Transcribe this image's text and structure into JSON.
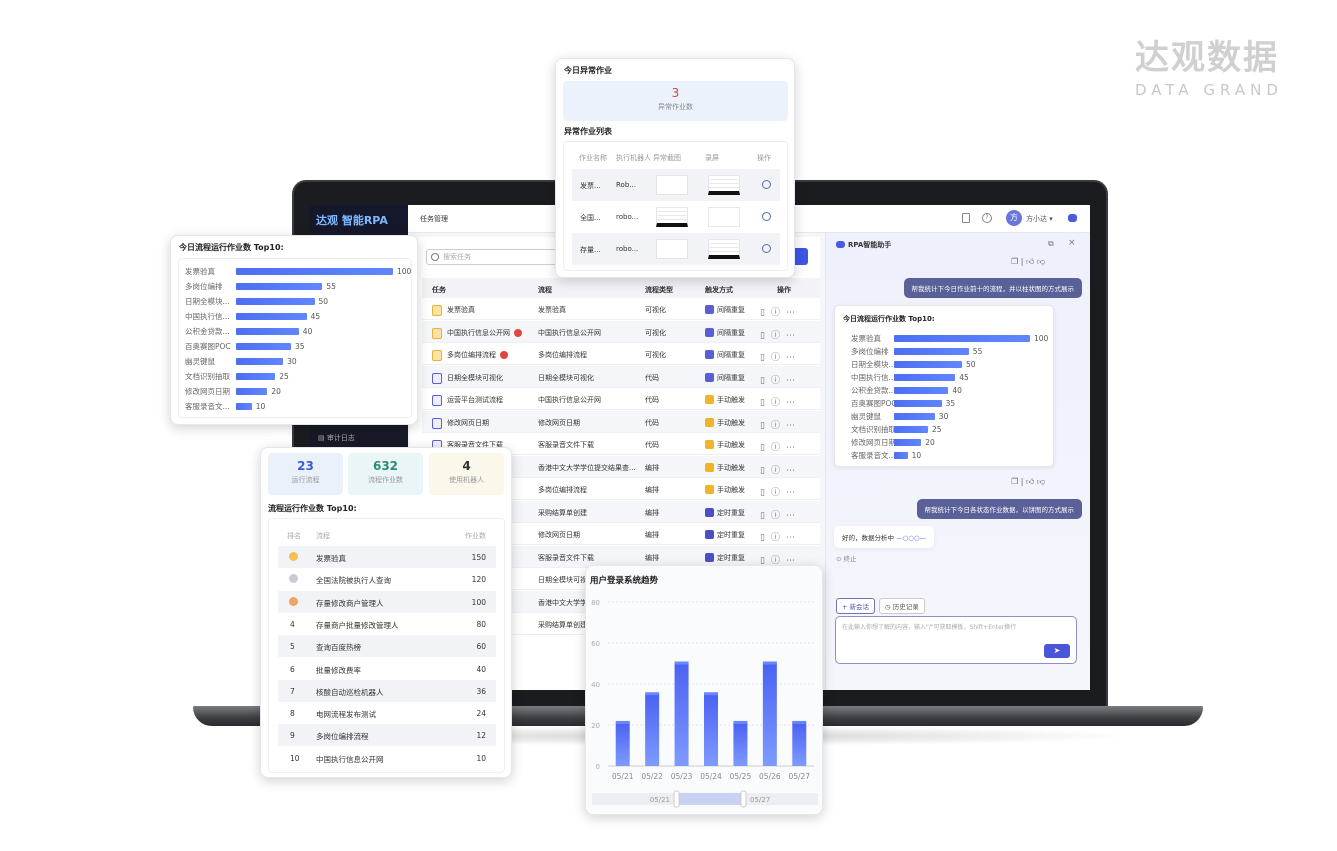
{
  "brand": {
    "cn": "达观数据",
    "en": "DATA GRAND"
  },
  "app": {
    "logo": "达观 智能RPA",
    "page_title": "任务管理",
    "user_avatar": "方",
    "user_name": "方小达 ▾",
    "sidebar_items": [
      {
        "label": "审计日志"
      }
    ]
  },
  "tasks": {
    "search_placeholder": "搜索任务",
    "columns": [
      "任务",
      "流程",
      "流程类型",
      "触发方式",
      "操作"
    ],
    "rows": [
      {
        "task": "发票验真",
        "flow": "发票验真",
        "type": "可视化",
        "trigger": "间隔重复",
        "icon": "visual",
        "badge": false
      },
      {
        "task": "中国执行信息公开网",
        "flow": "中国执行信息公开网",
        "type": "可视化",
        "trigger": "间隔重复",
        "icon": "visual",
        "badge": true
      },
      {
        "task": "多岗位编排流程",
        "flow": "多岗位编排流程",
        "type": "可视化",
        "trigger": "间隔重复",
        "icon": "visual",
        "badge": true
      },
      {
        "task": "日期全模块可视化",
        "flow": "日期全模块可视化",
        "type": "代码",
        "trigger": "间隔重复",
        "icon": "code",
        "badge": false
      },
      {
        "task": "运营平台测试流程",
        "flow": "中国执行信息公开网",
        "type": "代码",
        "trigger": "手动触发",
        "icon": "code",
        "badge": false
      },
      {
        "task": "修改网页日期",
        "flow": "修改网页日期",
        "type": "代码",
        "trigger": "手动触发",
        "icon": "code",
        "badge": false
      },
      {
        "task": "客服录音文件下载",
        "flow": "客服录音文件下载",
        "type": "代码",
        "trigger": "手动触发",
        "icon": "code",
        "badge": false
      },
      {
        "task": "",
        "flow": "香港中文大学学位提交结果查...",
        "type": "编排",
        "trigger": "手动触发"
      },
      {
        "task": "",
        "flow": "多岗位编排流程",
        "type": "编排",
        "trigger": "手动触发"
      },
      {
        "task": "",
        "flow": "采购结算单创建",
        "type": "编排",
        "trigger": "定时重复"
      },
      {
        "task": "",
        "flow": "修改网页日期",
        "type": "编排",
        "trigger": "定时重复"
      },
      {
        "task": "",
        "flow": "客服录音文件下载",
        "type": "编排",
        "trigger": "定时重复"
      },
      {
        "task": "",
        "flow": "日期全模块可视",
        "type": "",
        "trigger": ""
      },
      {
        "task": "",
        "flow": "香港中文大学学",
        "type": "",
        "trigger": ""
      },
      {
        "task": "",
        "flow": "采购结算单创建",
        "type": "",
        "trigger": ""
      }
    ],
    "trigger_colors": {
      "间隔重复": "#5b5fd6",
      "手动触发": "#f0b429",
      "定时重复": "#4b4fc4"
    }
  },
  "anomaly": {
    "title": "今日异常作业",
    "count": "3",
    "count_label": "异常作业数",
    "list_title": "异常作业列表",
    "columns": [
      "作业名称",
      "执行机器人",
      "异常截图",
      "录屏",
      "操作"
    ],
    "rows": [
      {
        "name": "发票...",
        "robot": "Rob..."
      },
      {
        "name": "全国...",
        "robot": "robo..."
      },
      {
        "name": "存量...",
        "robot": "robo..."
      }
    ]
  },
  "top10": {
    "title": "今日流程运行作业数 Top10:",
    "items": [
      {
        "label": "发票验真",
        "value": 100
      },
      {
        "label": "多岗位编排",
        "value": 55
      },
      {
        "label": "日期全模块...",
        "value": 50
      },
      {
        "label": "中国执行信...",
        "value": 45
      },
      {
        "label": "公积金贷款...",
        "value": 40
      },
      {
        "label": "百奥赛图POC",
        "value": 35
      },
      {
        "label": "幽灵键鼠",
        "value": 30
      },
      {
        "label": "文档识别抽取",
        "value": 25
      },
      {
        "label": "修改网页日期",
        "value": 20
      },
      {
        "label": "客服录音文...",
        "value": 10
      }
    ]
  },
  "stats": {
    "boxes": [
      {
        "value": "23",
        "label": "运行流程",
        "color": "#3b5bd6",
        "bg": "#eaf1fb"
      },
      {
        "value": "632",
        "label": "流程作业数",
        "color": "#2e8a74",
        "bg": "#e9f5f7"
      },
      {
        "value": "4",
        "label": "使用机器人",
        "color": "#333333",
        "bg": "#fbf7ea"
      }
    ],
    "ranking_title": "流程运行作业数 Top10:",
    "columns": [
      "排名",
      "流程",
      "作业数"
    ],
    "rows": [
      {
        "rank": "1",
        "name": "发票验真",
        "value": "150",
        "medal": "#f2c14e"
      },
      {
        "rank": "2",
        "name": "全国法院被执行人查询",
        "value": "120",
        "medal": "#c9cbd6"
      },
      {
        "rank": "3",
        "name": "存量修改商户管理人",
        "value": "100",
        "medal": "#eea665"
      },
      {
        "rank": "4",
        "name": "存量商户批量修改管理人",
        "value": "80"
      },
      {
        "rank": "5",
        "name": "查询百度热榜",
        "value": "60"
      },
      {
        "rank": "6",
        "name": "批量修改费率",
        "value": "40"
      },
      {
        "rank": "7",
        "name": "核酸自动巡检机器人",
        "value": "36"
      },
      {
        "rank": "8",
        "name": "电网流程发布测试",
        "value": "24"
      },
      {
        "rank": "9",
        "name": "多岗位编排流程",
        "value": "12"
      },
      {
        "rank": "10",
        "name": "中国执行信息公开网",
        "value": "10"
      }
    ]
  },
  "chart_data": {
    "type": "bar",
    "title": "用户登录系统趋势",
    "categories": [
      "05/21",
      "05/22",
      "05/23",
      "05/24",
      "05/25",
      "05/26",
      "05/27"
    ],
    "values": [
      21,
      35,
      50,
      35,
      21,
      50,
      21
    ],
    "ylim": [
      0,
      80
    ],
    "yticks": [
      0,
      20,
      40,
      60,
      80
    ],
    "grid": true,
    "zoom_range": [
      "05/21",
      "05/27"
    ],
    "color": "#4a67f5"
  },
  "assistant": {
    "title": "RPA智能助手",
    "user_msg1": "帮我统计下今日作业前十的流程，并以柱状图的方式展示",
    "user_msg2": "帮我统计下今日各状态作业数据，以饼图的方式展示",
    "bot_reply": "好的，数据分析中",
    "stop": "终止",
    "new_session": "+ 新会话",
    "history": "历史记录",
    "input_placeholder": "在此输入你想了解的内容，输入\"/\"可获取模板，Shift+Enter换行"
  }
}
